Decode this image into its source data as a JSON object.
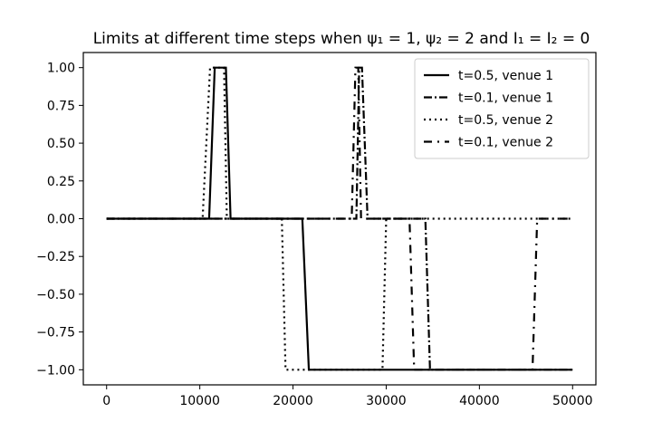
{
  "chart_data": {
    "type": "line",
    "title": "Limits at different time steps when ψ₁ = 1, ψ₂ = 2 and I₁ = I₂ = 0",
    "xlabel": "",
    "ylabel": "",
    "xlim": [
      -2500,
      52500
    ],
    "ylim": [
      -1.1,
      1.1
    ],
    "xticks": [
      0,
      10000,
      20000,
      30000,
      40000,
      50000
    ],
    "xtick_labels": [
      "0",
      "10000",
      "20000",
      "30000",
      "40000",
      "50000"
    ],
    "yticks": [
      1.0,
      0.75,
      0.5,
      0.25,
      0.0,
      -0.25,
      -0.5,
      -0.75,
      -1.0
    ],
    "ytick_labels": [
      "1.00",
      "0.75",
      "0.50",
      "0.25",
      "0.00",
      "−0.25",
      "−0.50",
      "−0.75",
      "−1.00"
    ],
    "grid": false,
    "legend_position": "top-right",
    "series": [
      {
        "name": "t=0.5, venue 1",
        "style": "solid",
        "color": "#000000",
        "x": [
          0,
          11000,
          11600,
          12800,
          13300,
          21000,
          21700,
          50000
        ],
        "y": [
          0,
          0,
          1,
          1,
          0,
          0,
          -1,
          -1
        ]
      },
      {
        "name": "t=0.1, venue 1",
        "style": "dashdot",
        "color": "#000000",
        "x": [
          0,
          26800,
          27100,
          27400,
          28000,
          34200,
          34700,
          50000
        ],
        "y": [
          0,
          0,
          1,
          1,
          0,
          0,
          -1,
          -1
        ]
      },
      {
        "name": "t=0.5, venue 2",
        "style": "dotted",
        "color": "#000000",
        "x": [
          0,
          10300,
          11100,
          12600,
          12900,
          18800,
          19200,
          29600,
          30000,
          50000
        ],
        "y": [
          0,
          0,
          1,
          1,
          0,
          0,
          -1,
          -1,
          0,
          0
        ]
      },
      {
        "name": "t=0.1, venue 2",
        "style": "loosedashdot",
        "color": "#000000",
        "x": [
          0,
          26300,
          26700,
          27000,
          27300,
          32500,
          33000,
          45700,
          46200,
          50000
        ],
        "y": [
          0,
          0,
          1,
          1,
          0,
          0,
          -1,
          -1,
          0,
          0
        ]
      }
    ]
  }
}
